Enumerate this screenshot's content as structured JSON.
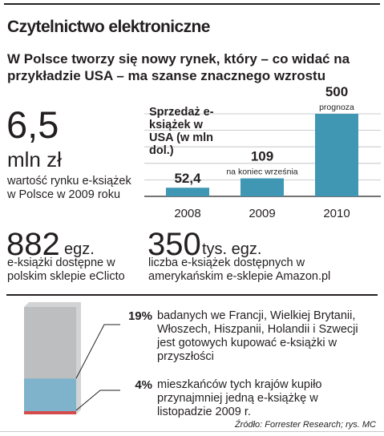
{
  "title": "Czytelnictwo elektroniczne",
  "subtitle": "W Polsce tworzy się nowy rynek, który – co widać na przykładzie USA – ma szanse znacznego wzrostu",
  "stats": {
    "poland_value": {
      "number": "6,5",
      "unit": "mln zł",
      "description": "wartość rynku e-książek w Polsce w 2009 roku"
    },
    "eclicto": {
      "number": "882",
      "unit": "egz.",
      "description": "e-książki dostępne w polskim sklepie eClicto"
    },
    "amazon": {
      "number": "350",
      "unit": "tys. egz.",
      "description": "liczba e-książek dostępnych w amerykańskim e-sklepie Amazon.pl"
    }
  },
  "chart_data": {
    "type": "bar",
    "title": "Sprzedaż e-książek w USA (w mln dol.)",
    "categories": [
      "2008",
      "2009",
      "2010"
    ],
    "values": [
      52.4,
      109,
      500
    ],
    "value_labels": [
      "52,4",
      "109",
      "500"
    ],
    "bar_notes": [
      "",
      "na koniec września",
      "prognoza"
    ],
    "ylim": [
      0,
      500
    ],
    "bar_color": "#3f97b4",
    "grid": true
  },
  "survey": {
    "items": [
      {
        "percent": "19%",
        "text": "badanych we Francji, Wielkiej Brytanii, Włoszech, Hiszpanii, Holandii i Szwecji jest gotowych kupować e-książki w przyszłości"
      },
      {
        "percent": "4%",
        "text": "mieszkańców tych krajów kupiło przynajmniej jedną e-książkę w listopadzie 2009 r."
      }
    ],
    "bar": {
      "share_ready": 0.19,
      "share_bought": 0.04
    },
    "colors": {
      "base": "#bcbec0",
      "ready": "#7fb3cb",
      "bought": "#d34b4b"
    }
  },
  "source": "Źródło: Forrester Research; rys. MC"
}
